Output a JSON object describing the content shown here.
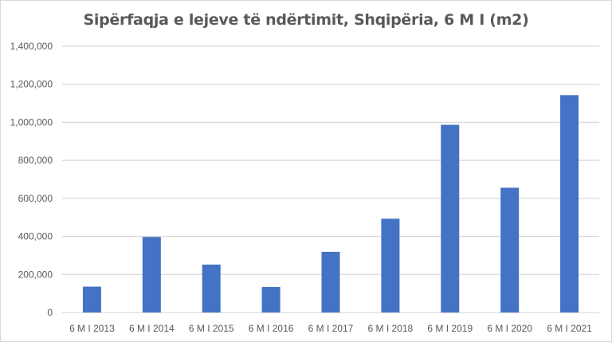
{
  "chart_data": {
    "type": "bar",
    "title": "Sipërfaqja e lejeve të ndërtimit, Shqipëria, 6 M I (m2)",
    "xlabel": "",
    "ylabel": "",
    "categories": [
      "6 M I 2013",
      "6 M I 2014",
      "6 M I 2015",
      "6 M I 2016",
      "6 M I 2017",
      "6 M I 2018",
      "6 M I 2019",
      "6 M I 2020",
      "6 M I 2021"
    ],
    "values": [
      136000,
      397000,
      252000,
      134000,
      319000,
      493000,
      987000,
      656000,
      1143000
    ],
    "ylim": [
      0,
      1400000
    ],
    "yticks": [
      0,
      200000,
      400000,
      600000,
      800000,
      1000000,
      1200000,
      1400000
    ],
    "ytick_labels": [
      "0",
      "200,000",
      "400,000",
      "600,000",
      "800,000",
      "1,000,000",
      "1,200,000",
      "1,400,000"
    ],
    "grid": true,
    "legend": "none",
    "bar_color": "#4472c4",
    "grid_color": "#d9d9d9"
  }
}
